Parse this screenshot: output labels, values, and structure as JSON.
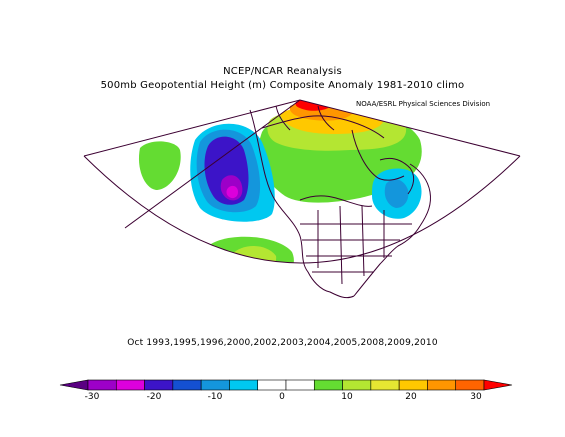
{
  "title_line1": "NCEP/NCAR Reanalysis",
  "title_line2": "500mb Geopotential Height (m) Composite Anomaly 1981-2010 climo",
  "credit": "NOAA/ESRL Physical Sciences Division",
  "dates": "Oct 1993,1995,1996,2000,2002,2003,2004,2005,2008,2009,2010",
  "colorbar": {
    "labels": [
      "-30",
      "-20",
      "-10",
      "0",
      "10",
      "20",
      "30"
    ],
    "colors": [
      "#5a0082",
      "#9d00c8",
      "#dc00dc",
      "#3c14c8",
      "#1450d2",
      "#1496dc",
      "#00c8f0",
      "#ffffff",
      "#ffffff",
      "#64dc32",
      "#b4e632",
      "#e6e632",
      "#ffc800",
      "#ff9600",
      "#ff6400",
      "#ff0000"
    ]
  },
  "anomaly_colors": {
    "pos10": "#64dc32",
    "pos15": "#b4e632",
    "pos20": "#ffc800",
    "pos25": "#ff9600",
    "pos30": "#ff0000",
    "neg10": "#00c8f0",
    "neg15": "#1496dc",
    "neg20": "#3c14c8",
    "neg25": "#9d00c8",
    "neg30": "#dc00dc"
  }
}
